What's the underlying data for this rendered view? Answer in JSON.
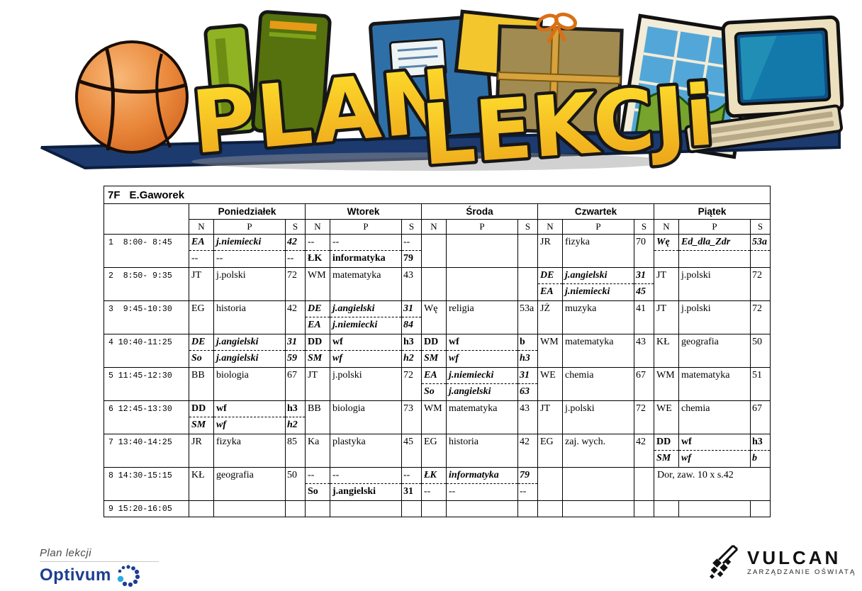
{
  "banner": {
    "word1": "PLAN",
    "word2": "LEKCJi"
  },
  "plan": {
    "class_label": "7F",
    "teacher": "E.Gaworek",
    "days": [
      "Poniedziałek",
      "Wtorek",
      "Środa",
      "Czwartek",
      "Piątek"
    ],
    "subcols": [
      "N",
      "P",
      "S"
    ],
    "rows": [
      {
        "label": "1  8:00- 8:45",
        "cells": [
          {
            "e": [
              {
                "n": "EA",
                "p": "j.niemiecki",
                "s": "42",
                "f": "bi"
              },
              {
                "n": "--",
                "p": "--",
                "s": "--",
                "f": ""
              }
            ]
          },
          {
            "e": [
              {
                "n": "--",
                "p": "--",
                "s": "--",
                "f": ""
              },
              {
                "n": "ŁK",
                "p": "informatyka",
                "s": "79",
                "f": "b"
              }
            ]
          },
          {
            "e": []
          },
          {
            "e": [
              {
                "n": "JR",
                "p": "fizyka",
                "s": "70",
                "f": ""
              }
            ]
          },
          {
            "e": [
              {
                "n": "Wę",
                "p": "Ed_dla_Zdr",
                "s": "53a",
                "f": "bi"
              },
              {
                "n": "",
                "p": "",
                "s": "",
                "f": ""
              }
            ]
          }
        ]
      },
      {
        "label": "2  8:50- 9:35",
        "cells": [
          {
            "e": [
              {
                "n": "JT",
                "p": "j.polski",
                "s": "72",
                "f": ""
              }
            ]
          },
          {
            "e": [
              {
                "n": "WM",
                "p": "matematyka",
                "s": "43",
                "f": ""
              }
            ]
          },
          {
            "e": []
          },
          {
            "e": [
              {
                "n": "DE",
                "p": "j.angielski",
                "s": "31",
                "f": "bi"
              },
              {
                "n": "EA",
                "p": "j.niemiecki",
                "s": "45",
                "f": "bi"
              }
            ]
          },
          {
            "e": [
              {
                "n": "JT",
                "p": "j.polski",
                "s": "72",
                "f": ""
              }
            ]
          }
        ]
      },
      {
        "label": "3  9:45-10:30",
        "cells": [
          {
            "e": [
              {
                "n": "EG",
                "p": "historia",
                "s": "42",
                "f": ""
              }
            ]
          },
          {
            "e": [
              {
                "n": "DE",
                "p": "j.angielski",
                "s": "31",
                "f": "bi"
              },
              {
                "n": "EA",
                "p": "j.niemiecki",
                "s": "84",
                "f": "bi"
              }
            ]
          },
          {
            "e": [
              {
                "n": "Wę",
                "p": "religia",
                "s": "53a",
                "f": ""
              }
            ]
          },
          {
            "e": [
              {
                "n": "JŻ",
                "p": "muzyka",
                "s": "41",
                "f": ""
              }
            ]
          },
          {
            "e": [
              {
                "n": "JT",
                "p": "j.polski",
                "s": "72",
                "f": ""
              }
            ]
          }
        ]
      },
      {
        "label": "4 10:40-11:25",
        "cells": [
          {
            "e": [
              {
                "n": "DE",
                "p": "j.angielski",
                "s": "31",
                "f": "bi"
              },
              {
                "n": "So",
                "p": "j.angielski",
                "s": "59",
                "f": "bi"
              }
            ]
          },
          {
            "e": [
              {
                "n": "DD",
                "p": "wf",
                "s": "h3",
                "f": "b"
              },
              {
                "n": "SM",
                "p": "wf",
                "s": "h2",
                "f": "bi"
              }
            ]
          },
          {
            "e": [
              {
                "n": "DD",
                "p": "wf",
                "s": "b",
                "f": "b"
              },
              {
                "n": "SM",
                "p": "wf",
                "s": "h3",
                "f": "bi"
              }
            ]
          },
          {
            "e": [
              {
                "n": "WM",
                "p": "matematyka",
                "s": "43",
                "f": ""
              }
            ]
          },
          {
            "e": [
              {
                "n": "KŁ",
                "p": "geografia",
                "s": "50",
                "f": ""
              }
            ]
          }
        ]
      },
      {
        "label": "5 11:45-12:30",
        "cells": [
          {
            "e": [
              {
                "n": "BB",
                "p": "biologia",
                "s": "67",
                "f": ""
              }
            ]
          },
          {
            "e": [
              {
                "n": "JT",
                "p": "j.polski",
                "s": "72",
                "f": ""
              }
            ]
          },
          {
            "e": [
              {
                "n": "EA",
                "p": "j.niemiecki",
                "s": "31",
                "f": "bi"
              },
              {
                "n": "So",
                "p": "j.angielski",
                "s": "63",
                "f": "bi"
              }
            ]
          },
          {
            "e": [
              {
                "n": "WE",
                "p": "chemia",
                "s": "67",
                "f": ""
              }
            ]
          },
          {
            "e": [
              {
                "n": "WM",
                "p": "matematyka",
                "s": "51",
                "f": ""
              }
            ]
          }
        ]
      },
      {
        "label": "6 12:45-13:30",
        "cells": [
          {
            "e": [
              {
                "n": "DD",
                "p": "wf",
                "s": "h3",
                "f": "b"
              },
              {
                "n": "SM",
                "p": "wf",
                "s": "h2",
                "f": "bi"
              }
            ]
          },
          {
            "e": [
              {
                "n": "BB",
                "p": "biologia",
                "s": "73",
                "f": ""
              }
            ]
          },
          {
            "e": [
              {
                "n": "WM",
                "p": "matematyka",
                "s": "43",
                "f": ""
              }
            ]
          },
          {
            "e": [
              {
                "n": "JT",
                "p": "j.polski",
                "s": "72",
                "f": ""
              }
            ]
          },
          {
            "e": [
              {
                "n": "WE",
                "p": "chemia",
                "s": "67",
                "f": ""
              }
            ]
          }
        ]
      },
      {
        "label": "7 13:40-14:25",
        "cells": [
          {
            "e": [
              {
                "n": "JR",
                "p": "fizyka",
                "s": "85",
                "f": ""
              }
            ]
          },
          {
            "e": [
              {
                "n": "Ka",
                "p": "plastyka",
                "s": "45",
                "f": ""
              }
            ]
          },
          {
            "e": [
              {
                "n": "EG",
                "p": "historia",
                "s": "42",
                "f": ""
              }
            ]
          },
          {
            "e": [
              {
                "n": "EG",
                "p": "zaj. wych.",
                "s": "42",
                "f": ""
              }
            ]
          },
          {
            "e": [
              {
                "n": "DD",
                "p": "wf",
                "s": "h3",
                "f": "b"
              },
              {
                "n": "SM",
                "p": "wf",
                "s": "b",
                "f": "bi"
              }
            ]
          }
        ]
      },
      {
        "label": "8 14:30-15:15",
        "cells": [
          {
            "e": [
              {
                "n": "KŁ",
                "p": "geografia",
                "s": "50",
                "f": ""
              }
            ]
          },
          {
            "e": [
              {
                "n": "--",
                "p": "--",
                "s": "--",
                "f": ""
              },
              {
                "n": "So",
                "p": "j.angielski",
                "s": "31",
                "f": "b"
              }
            ]
          },
          {
            "e": [
              {
                "n": "ŁK",
                "p": "informatyka",
                "s": "79",
                "f": "bi"
              },
              {
                "n": "--",
                "p": "--",
                "s": "--",
                "f": ""
              }
            ]
          },
          {
            "e": []
          },
          {
            "note": "Dor, zaw. 10 x s.42"
          }
        ]
      },
      {
        "label": "9 15:20-16:05",
        "cells": [
          {
            "e": []
          },
          {
            "e": []
          },
          {
            "e": []
          },
          {
            "e": []
          },
          {
            "e": []
          }
        ]
      }
    ]
  },
  "footer": {
    "left": {
      "line1": "Plan lekcji",
      "brand": "Optivum"
    },
    "right": {
      "brand": "VULCAN",
      "tagline": "ZARZĄDZANIE OŚWIATĄ"
    }
  },
  "colors": {
    "banner_gold": "#ffd91f",
    "banner_bar": "#1c3a6e",
    "optivum_navy": "#1d3e92",
    "optivum_cyan": "#29abe2",
    "vulcan_black": "#111111"
  }
}
